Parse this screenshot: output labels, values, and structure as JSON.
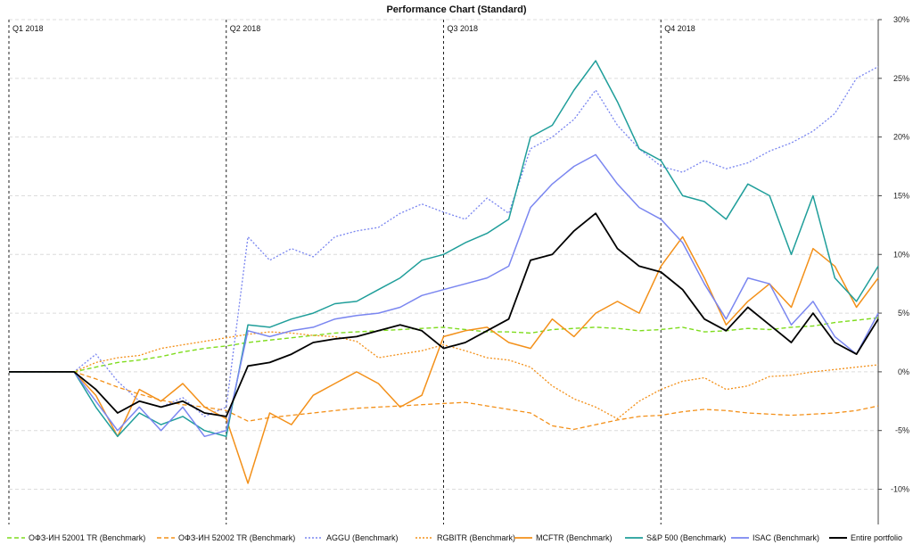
{
  "chart_data": {
    "type": "line",
    "title": "Performance Chart (Standard)",
    "quarters": [
      "Q1 2018",
      "Q2 2018",
      "Q3 2018",
      "Q4 2018"
    ],
    "y_ticks": [
      "30%",
      "25%",
      "20%",
      "15%",
      "10%",
      "5%",
      "0%",
      "-5%",
      "-10%"
    ],
    "ylim": [
      -13,
      30
    ],
    "xlim": [
      0,
      40
    ],
    "grid": true,
    "legend_position": "bottom",
    "x": [
      0,
      1,
      2,
      3,
      4,
      5,
      6,
      7,
      8,
      9,
      10,
      11,
      12,
      13,
      14,
      15,
      16,
      17,
      18,
      19,
      20,
      21,
      22,
      23,
      24,
      25,
      26,
      27,
      28,
      29,
      30,
      31,
      32,
      33,
      34,
      35,
      36,
      37,
      38,
      39,
      40
    ],
    "series": [
      {
        "name": "ОФЗ-ИН 52001 TR (Benchmark)",
        "color": "#7fdc1e",
        "dash": "5,3",
        "width": 1.4,
        "values": [
          0,
          0,
          0,
          0,
          0.4,
          0.8,
          1.0,
          1.3,
          1.7,
          2.0,
          2.2,
          2.5,
          2.7,
          2.9,
          3.1,
          3.3,
          3.4,
          3.5,
          3.6,
          3.7,
          3.8,
          3.6,
          3.4,
          3.4,
          3.3,
          3.6,
          3.7,
          3.8,
          3.7,
          3.5,
          3.6,
          3.8,
          3.4,
          3.5,
          3.7,
          3.6,
          3.8,
          3.9,
          4.2,
          4.4,
          4.6
        ]
      },
      {
        "name": "ОФЗ-ИН 52002 TR (Benchmark)",
        "color": "#f39019",
        "dash": "5,3",
        "width": 1.3,
        "values": [
          0,
          0,
          0,
          0,
          -0.6,
          -1.3,
          -1.9,
          -2.4,
          -2.8,
          -3.0,
          -3.3,
          -4.2,
          -3.9,
          -3.7,
          -3.5,
          -3.3,
          -3.1,
          -3.0,
          -2.9,
          -2.8,
          -2.7,
          -2.6,
          -2.9,
          -3.2,
          -3.5,
          -4.6,
          -4.9,
          -4.5,
          -4.1,
          -3.8,
          -3.7,
          -3.4,
          -3.2,
          -3.3,
          -3.5,
          -3.6,
          -3.7,
          -3.6,
          -3.5,
          -3.3,
          -2.9
        ]
      },
      {
        "name": "AGGU (Benchmark)",
        "color": "#7a86f0",
        "dash": "2,2",
        "width": 1.3,
        "values": [
          0,
          0,
          0,
          0,
          1.5,
          -0.8,
          -2.5,
          -3.0,
          -2.2,
          -3.8,
          -3.0,
          11.5,
          9.5,
          10.5,
          9.8,
          11.5,
          12.0,
          12.3,
          13.5,
          14.3,
          13.6,
          13.0,
          14.8,
          13.5,
          19.0,
          20.0,
          21.5,
          24.0,
          21.0,
          19.0,
          17.5,
          17.0,
          18.0,
          17.3,
          17.8,
          18.8,
          19.5,
          20.5,
          22.0,
          25.0,
          26.0
        ]
      },
      {
        "name": "RGBITR (Benchmark)",
        "color": "#f39019",
        "dash": "2,2",
        "width": 1.3,
        "values": [
          0,
          0,
          0,
          0,
          0.8,
          1.2,
          1.4,
          2.0,
          2.3,
          2.6,
          2.9,
          3.2,
          3.4,
          3.3,
          3.1,
          3.0,
          2.6,
          1.2,
          1.5,
          1.8,
          2.3,
          1.8,
          1.2,
          1.0,
          0.4,
          -1.2,
          -2.3,
          -3.0,
          -4.0,
          -2.5,
          -1.5,
          -0.8,
          -0.5,
          -1.5,
          -1.2,
          -0.4,
          -0.3,
          0.0,
          0.2,
          0.4,
          0.6
        ]
      },
      {
        "name": "MCFTR (Benchmark)",
        "color": "#f39019",
        "dash": "",
        "width": 1.5,
        "values": [
          0,
          0,
          0,
          0,
          -2.0,
          -5.5,
          -1.5,
          -2.5,
          -1.0,
          -3.0,
          -4.0,
          -9.5,
          -3.5,
          -4.5,
          -2.0,
          -1.0,
          0.0,
          -1.0,
          -3.0,
          -2.0,
          3.0,
          3.5,
          3.8,
          2.5,
          2.0,
          4.5,
          3.0,
          5.0,
          6.0,
          5.0,
          9.0,
          11.5,
          8.0,
          4.0,
          6.0,
          7.5,
          5.5,
          10.5,
          9.0,
          5.5,
          8.0
        ]
      },
      {
        "name": "S&P 500 (Benchmark)",
        "color": "#1f9e9a",
        "dash": "",
        "width": 1.5,
        "values": [
          0,
          0,
          0,
          0,
          -3.0,
          -5.5,
          -3.5,
          -4.5,
          -3.8,
          -5.0,
          -5.5,
          4.0,
          3.8,
          4.5,
          5.0,
          5.8,
          6.0,
          7.0,
          8.0,
          9.5,
          10.0,
          11.0,
          11.8,
          13.0,
          20.0,
          21.0,
          24.0,
          26.5,
          23.0,
          19.0,
          18.0,
          15.0,
          14.5,
          13.0,
          16.0,
          15.0,
          10.0,
          15.0,
          8.0,
          6.0,
          9.0
        ]
      },
      {
        "name": "ISAC (Benchmark)",
        "color": "#7a86f0",
        "dash": "",
        "width": 1.5,
        "values": [
          0,
          0,
          0,
          0,
          -2.5,
          -5.0,
          -3.0,
          -5.0,
          -3.0,
          -5.5,
          -5.0,
          3.5,
          3.0,
          3.5,
          3.8,
          4.5,
          4.8,
          5.0,
          5.5,
          6.5,
          7.0,
          7.5,
          8.0,
          9.0,
          14.0,
          16.0,
          17.5,
          18.5,
          16.0,
          14.0,
          13.0,
          11.0,
          7.5,
          4.5,
          8.0,
          7.5,
          4.0,
          6.0,
          3.0,
          1.5,
          5.0
        ]
      },
      {
        "name": "Entire portfolio",
        "color": "#000000",
        "dash": "",
        "width": 1.8,
        "values": [
          0,
          0,
          0,
          0,
          -1.5,
          -3.5,
          -2.5,
          -3.0,
          -2.5,
          -3.5,
          -3.8,
          0.5,
          0.8,
          1.5,
          2.5,
          2.8,
          3.0,
          3.5,
          4.0,
          3.5,
          2.0,
          2.5,
          3.5,
          4.5,
          9.5,
          10.0,
          12.0,
          13.5,
          10.5,
          9.0,
          8.5,
          7.0,
          4.5,
          3.5,
          5.5,
          4.0,
          2.5,
          5.0,
          2.5,
          1.5,
          4.5
        ]
      }
    ]
  }
}
